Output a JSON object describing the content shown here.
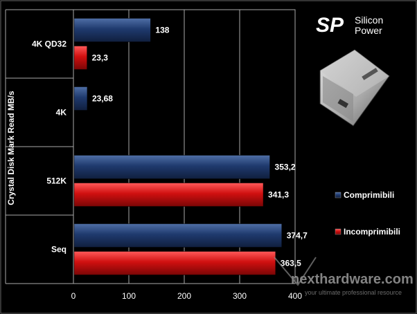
{
  "chart_data": {
    "type": "bar",
    "orientation": "horizontal",
    "ylabel": "Crystal Disk Mark Read MB/s",
    "categories": [
      "4K QD32",
      "4K",
      "512K",
      "Seq"
    ],
    "series": [
      {
        "name": "Comprimibili",
        "color": "#1f3a6e",
        "values": [
          138,
          23.68,
          353.2,
          374.7
        ],
        "labels": [
          "138",
          "23,68",
          "353,2",
          "374,7"
        ]
      },
      {
        "name": "Incomprimibili",
        "color": "#cc1111",
        "values": [
          23.3,
          null,
          341.3,
          363.5
        ],
        "labels": [
          "23,3",
          "",
          "341,3",
          "363,5"
        ]
      }
    ],
    "xlim": [
      0,
      400
    ],
    "xticks": [
      0,
      100,
      200,
      300,
      400
    ],
    "grid": true,
    "legend_position": "right"
  },
  "brand": {
    "logo_mark": "SP",
    "name_line1": "Silicon",
    "name_line2": "Power",
    "watermark_main": "nexthardware.com",
    "watermark_sub": "your ultimate professional resource"
  }
}
